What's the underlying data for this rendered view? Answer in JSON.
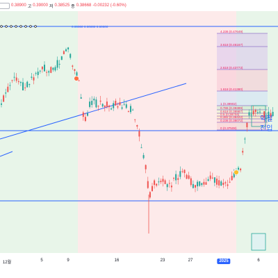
{
  "header": {
    "open_label": "",
    "open_value": "0.38900",
    "high_label": "고",
    "high_value": "0.39000",
    "low_label": "저",
    "low_value": "0.38525",
    "close_label": "종",
    "close_value": "0.38668",
    "change": "-0.00232 (-0.60%)"
  },
  "hline_label": "0.00000  0.00000  0.00000",
  "fib_levels": [
    {
      "ratio": "4.236",
      "price": "0.47649"
    },
    {
      "ratio": "3.618",
      "price": "0.46167"
    },
    {
      "ratio": "2.618",
      "price": "0.43773"
    },
    {
      "ratio": "1.618",
      "price": "0.41380"
    },
    {
      "ratio": "1",
      "price": "0.39902"
    },
    {
      "ratio": "0.786",
      "price": "0.39389"
    },
    {
      "ratio": "0.618",
      "price": "0.38987"
    },
    {
      "ratio": "0.5",
      "price": "0.38704"
    },
    {
      "ratio": "0.382",
      "price": "0.38422"
    },
    {
      "ratio": "0.236",
      "price": "0.38072"
    },
    {
      "ratio": "0",
      "price": "0.37508"
    }
  ],
  "side_labels": {
    "top": "익절",
    "bottom": "진입"
  },
  "x_axis": {
    "ticks": [
      "12월",
      "5",
      "9",
      "16",
      "23",
      "27",
      "2025",
      "6"
    ],
    "highlight": "2025"
  },
  "colors": {
    "up": "#26a69a",
    "down": "#ef5350",
    "green_zone": "#e8f5e9",
    "red_zone": "#fdeaea",
    "line": "#2962ff",
    "fib_label": "#e91e63"
  },
  "chart_data": {
    "type": "candlestick",
    "y_min": 0.3,
    "y_max": 0.5,
    "candles": []
  }
}
